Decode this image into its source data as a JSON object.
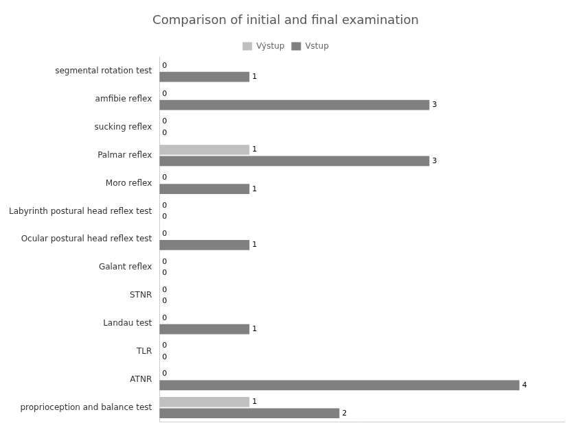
{
  "chart_data": {
    "type": "bar",
    "orientation": "horizontal",
    "title": "Comparison of initial and final examination",
    "categories": [
      "proprioception and balance test",
      "ATNR",
      "TLR",
      "Landau test",
      "STNR",
      "Galant reflex",
      "Ocular postural head reflex test",
      "Labyrinth postural head reflex test",
      "Moro reflex",
      "Palmar reflex",
      "sucking reflex",
      "amfibie reflex",
      "segmental rotation test"
    ],
    "series": [
      {
        "name": "Výstup",
        "color": "#c0c0c0",
        "values": [
          1,
          0,
          0,
          0,
          0,
          0,
          0,
          0,
          0,
          1,
          0,
          0,
          0
        ]
      },
      {
        "name": "Vstup",
        "color": "#808080",
        "values": [
          2,
          4,
          0,
          1,
          0,
          0,
          1,
          0,
          1,
          3,
          0,
          3,
          1
        ]
      }
    ],
    "xlim": [
      0,
      4.5
    ],
    "grid": false,
    "legend": "top",
    "data_labels": true,
    "tick_labels": "y"
  }
}
